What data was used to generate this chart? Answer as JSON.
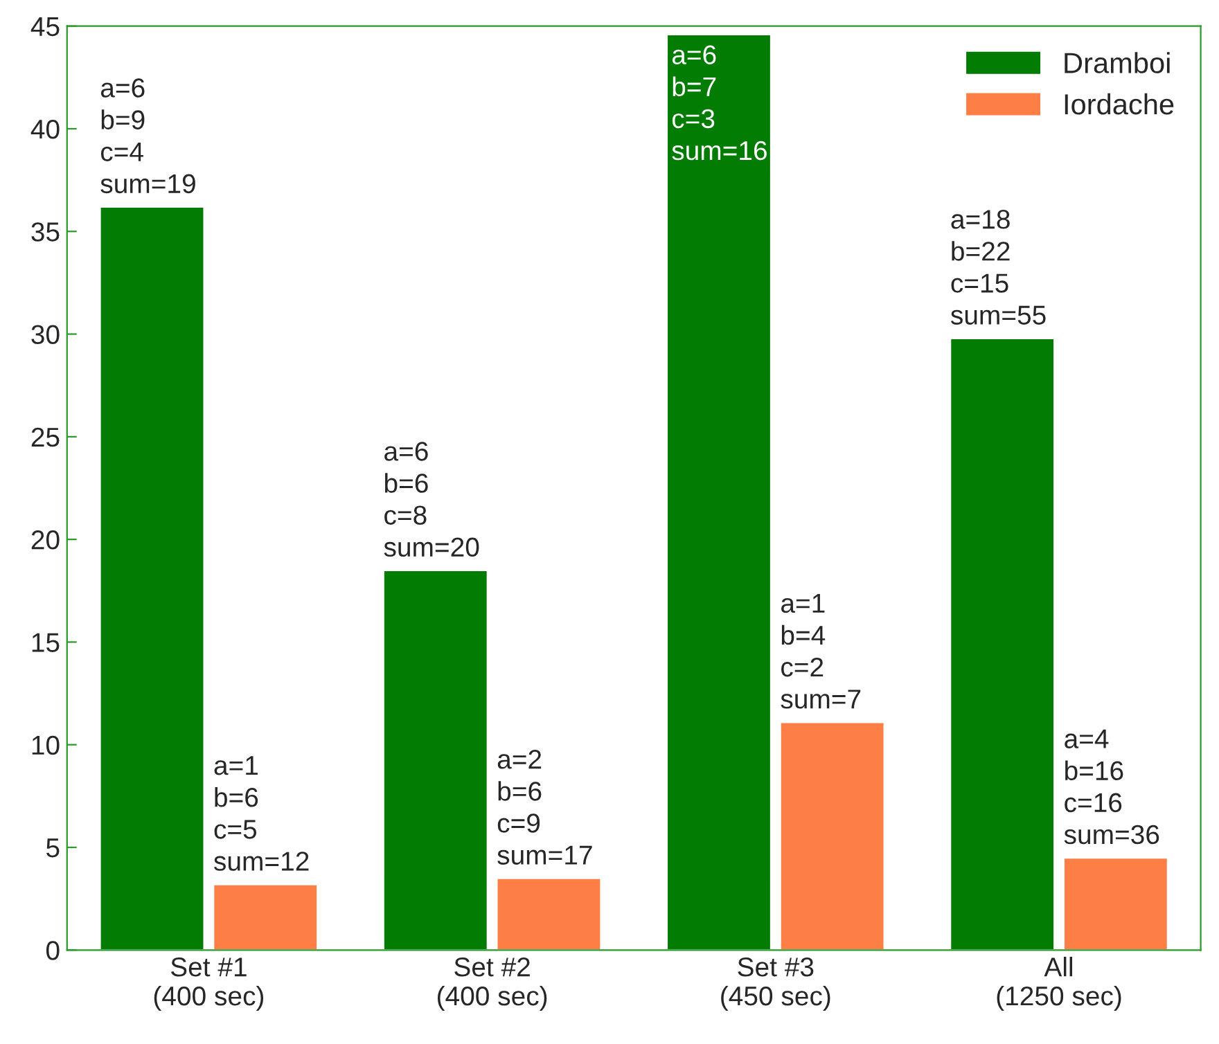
{
  "chart_data": {
    "type": "bar",
    "categories": [
      "Set #1\n(400 sec)",
      "Set #2\n(400 sec)",
      "Set #3\n(450 sec)",
      "All\n(1250 sec)"
    ],
    "series": [
      {
        "name": "Dramboi",
        "color": "#037c03",
        "values": [
          36.2,
          18.5,
          44.6,
          29.8
        ],
        "value_labels": [
          "a=6\nb=9\nc=4\nsum=19",
          "a=6\nb=6\nc=8\nsum=20",
          "a=6\nb=7\nc=3\nsum=16",
          "a=18\nb=22\nc=15\nsum=55"
        ]
      },
      {
        "name": "Iordache",
        "color": "#fd7f45",
        "values": [
          3.2,
          3.5,
          11.1,
          4.5
        ],
        "value_labels": [
          "a=1\nb=6\nc=5\nsum=12",
          "a=2\nb=6\nc=9\nsum=17",
          "a=1\nb=4\nc=2\nsum=7",
          "a=4\nb=16\nc=16\nsum=36"
        ]
      }
    ],
    "ylim": [
      0,
      45
    ],
    "yticks": [
      0,
      5,
      10,
      15,
      20,
      25,
      30,
      35,
      40,
      45
    ],
    "legend": "top right",
    "grid": false
  }
}
